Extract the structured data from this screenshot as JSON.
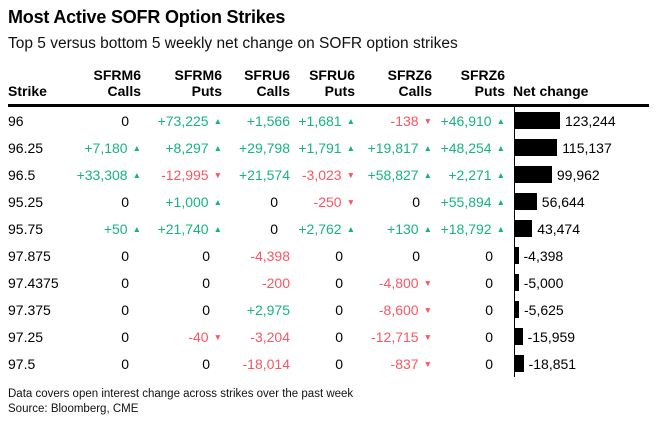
{
  "title": "Most Active SOFR Option Strikes",
  "subtitle": "Top 5 versus bottom 5 weekly net change on SOFR option strikes",
  "footnotes": {
    "line1": "Data covers open interest change across strikes over the past week",
    "line2": "Source: Bloomberg, CME"
  },
  "colors": {
    "positive": "#17b57d",
    "negative": "#fb5661",
    "bar": "#000000",
    "text": "#000000"
  },
  "icons": {
    "up_arrow": "▲",
    "down_arrow": "▼"
  },
  "header": {
    "columns": [
      {
        "line1": "",
        "line2": "Strike"
      },
      {
        "line1": "SFRM6",
        "line2": "Calls"
      },
      {
        "line1": "SFRM6",
        "line2": "Puts"
      },
      {
        "line1": "SFRU6",
        "line2": "Calls"
      },
      {
        "line1": "SFRU6",
        "line2": "Puts"
      },
      {
        "line1": "SFRZ6",
        "line2": "Calls"
      },
      {
        "line1": "SFRZ6",
        "line2": "Puts"
      },
      {
        "line1": "",
        "line2": "Net change"
      }
    ]
  },
  "chart_data": {
    "type": "table",
    "title": "Most Active SOFR Option Strikes",
    "subtitle": "Top 5 versus bottom 5 weekly net change on SOFR option strikes",
    "columns": [
      "Strike",
      "SFRM6 Calls",
      "SFRM6 Puts",
      "SFRU6 Calls",
      "SFRU6 Puts",
      "SFRZ6 Calls",
      "SFRZ6 Puts",
      "Net change"
    ],
    "bar_axis_max": 123244,
    "rows": [
      {
        "strike": "96",
        "values": [
          {
            "label": "0"
          },
          {
            "label": "+73,225",
            "dir": "up"
          },
          {
            "label": "+1,566"
          },
          {
            "label": "+1,681",
            "dir": "up"
          },
          {
            "label": "-138",
            "dir": "down"
          },
          {
            "label": "+46,910",
            "dir": "up"
          }
        ],
        "net": 123244,
        "net_label": "123,244"
      },
      {
        "strike": "96.25",
        "values": [
          {
            "label": "+7,180",
            "dir": "up"
          },
          {
            "label": "+8,297",
            "dir": "up"
          },
          {
            "label": "+29,798"
          },
          {
            "label": "+1,791",
            "dir": "up"
          },
          {
            "label": "+19,817",
            "dir": "up"
          },
          {
            "label": "+48,254",
            "dir": "up"
          }
        ],
        "net": 115137,
        "net_label": "115,137"
      },
      {
        "strike": "96.5",
        "values": [
          {
            "label": "+33,308",
            "dir": "up"
          },
          {
            "label": "-12,995",
            "dir": "down"
          },
          {
            "label": "+21,574"
          },
          {
            "label": "-3,023",
            "dir": "down"
          },
          {
            "label": "+58,827",
            "dir": "up"
          },
          {
            "label": "+2,271",
            "dir": "up"
          }
        ],
        "net": 99962,
        "net_label": "99,962"
      },
      {
        "strike": "95.25",
        "values": [
          {
            "label": "0"
          },
          {
            "label": "+1,000",
            "dir": "up"
          },
          {
            "label": "0"
          },
          {
            "label": "-250",
            "dir": "down"
          },
          {
            "label": "0"
          },
          {
            "label": "+55,894",
            "dir": "up"
          }
        ],
        "net": 56644,
        "net_label": "56,644"
      },
      {
        "strike": "95.75",
        "values": [
          {
            "label": "+50",
            "dir": "up"
          },
          {
            "label": "+21,740",
            "dir": "up"
          },
          {
            "label": "0"
          },
          {
            "label": "+2,762",
            "dir": "up"
          },
          {
            "label": "+130",
            "dir": "up"
          },
          {
            "label": "+18,792",
            "dir": "up"
          }
        ],
        "net": 43474,
        "net_label": "43,474"
      },
      {
        "strike": "97.875",
        "values": [
          {
            "label": "0"
          },
          {
            "label": "0"
          },
          {
            "label": "-4,398"
          },
          {
            "label": "0"
          },
          {
            "label": "0"
          },
          {
            "label": "0"
          }
        ],
        "net": -4398,
        "net_label": "-4,398"
      },
      {
        "strike": "97.4375",
        "values": [
          {
            "label": "0"
          },
          {
            "label": "0"
          },
          {
            "label": "-200"
          },
          {
            "label": "0"
          },
          {
            "label": "-4,800",
            "dir": "down"
          },
          {
            "label": "0"
          }
        ],
        "net": -5000,
        "net_label": "-5,000"
      },
      {
        "strike": "97.375",
        "values": [
          {
            "label": "0"
          },
          {
            "label": "0"
          },
          {
            "label": "+2,975"
          },
          {
            "label": "0"
          },
          {
            "label": "-8,600",
            "dir": "down"
          },
          {
            "label": "0"
          }
        ],
        "net": -5625,
        "net_label": "-5,625"
      },
      {
        "strike": "97.25",
        "values": [
          {
            "label": "0"
          },
          {
            "label": "-40",
            "dir": "down"
          },
          {
            "label": "-3,204"
          },
          {
            "label": "0"
          },
          {
            "label": "-12,715",
            "dir": "down"
          },
          {
            "label": "0"
          }
        ],
        "net": -15959,
        "net_label": "-15,959"
      },
      {
        "strike": "97.5",
        "values": [
          {
            "label": "0"
          },
          {
            "label": "0"
          },
          {
            "label": "-18,014"
          },
          {
            "label": "0"
          },
          {
            "label": "-837",
            "dir": "down"
          },
          {
            "label": "0"
          }
        ],
        "net": -18851,
        "net_label": "-18,851"
      }
    ]
  }
}
